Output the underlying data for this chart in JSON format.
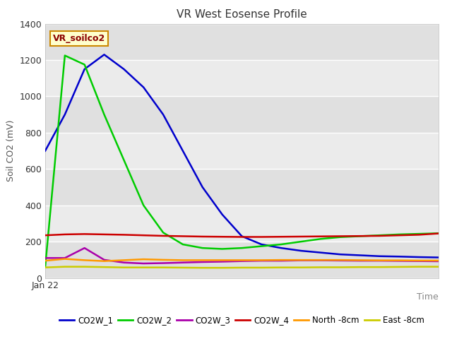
{
  "title": "VR West Eosense Profile",
  "xlabel": "Time",
  "ylabel": "Soil CO2 (mV)",
  "ylim": [
    0,
    1400
  ],
  "annotation_text": "VR_soilco2",
  "background_color": "#ffffff",
  "plot_bg_color": "#e8e8e8",
  "band_color_light": "#ebebeb",
  "band_color_dark": "#d8d8d8",
  "grid_color": "#ffffff",
  "x_tick_label": "Jan 22",
  "series": {
    "CO2W_1": {
      "color": "#0000cc",
      "x": [
        0,
        1,
        2,
        3,
        4,
        5,
        6,
        7,
        8,
        9,
        10,
        11,
        12,
        13,
        14,
        15,
        16,
        17,
        18,
        19,
        20
      ],
      "y": [
        700,
        900,
        1150,
        1230,
        1150,
        1050,
        900,
        700,
        500,
        350,
        230,
        185,
        165,
        150,
        140,
        130,
        125,
        120,
        118,
        115,
        113
      ]
    },
    "CO2W_2": {
      "color": "#00cc00",
      "x": [
        0,
        1,
        2,
        3,
        4,
        5,
        6,
        7,
        8,
        9,
        10,
        11,
        12,
        13,
        14,
        15,
        16,
        17,
        18,
        19,
        20
      ],
      "y": [
        60,
        1225,
        1175,
        900,
        650,
        400,
        250,
        185,
        165,
        160,
        165,
        175,
        185,
        200,
        215,
        225,
        230,
        235,
        240,
        243,
        246
      ]
    },
    "CO2W_3": {
      "color": "#aa00aa",
      "x": [
        0,
        1,
        2,
        3,
        4,
        5,
        6,
        7,
        8,
        9,
        10,
        11,
        12,
        13,
        14,
        15,
        16,
        17,
        18,
        19,
        20
      ],
      "y": [
        110,
        110,
        165,
        100,
        85,
        80,
        82,
        85,
        88,
        90,
        93,
        95,
        95,
        97,
        97,
        96,
        95,
        95,
        94,
        93,
        92
      ]
    },
    "CO2W_4": {
      "color": "#cc0000",
      "x": [
        0,
        1,
        2,
        3,
        4,
        5,
        6,
        7,
        8,
        9,
        10,
        11,
        12,
        13,
        14,
        15,
        16,
        17,
        18,
        19,
        20
      ],
      "y": [
        235,
        240,
        242,
        240,
        238,
        235,
        232,
        230,
        228,
        227,
        226,
        226,
        227,
        228,
        229,
        230,
        231,
        232,
        235,
        238,
        245
      ]
    },
    "North -8cm": {
      "color": "#ff9900",
      "x": [
        0,
        1,
        2,
        3,
        4,
        5,
        6,
        7,
        8,
        9,
        10,
        11,
        12,
        13,
        14,
        15,
        16,
        17,
        18,
        19,
        20
      ],
      "y": [
        95,
        105,
        98,
        93,
        98,
        103,
        100,
        98,
        98,
        98,
        98,
        98,
        99,
        99,
        99,
        99,
        98,
        97,
        97,
        96,
        96
      ]
    },
    "East -8cm": {
      "color": "#cccc00",
      "x": [
        0,
        1,
        2,
        3,
        4,
        5,
        6,
        7,
        8,
        9,
        10,
        11,
        12,
        13,
        14,
        15,
        16,
        17,
        18,
        19,
        20
      ],
      "y": [
        58,
        62,
        62,
        60,
        58,
        58,
        58,
        57,
        56,
        56,
        57,
        57,
        58,
        58,
        59,
        59,
        60,
        60,
        61,
        62,
        62
      ]
    }
  },
  "legend": [
    {
      "label": "CO2W_1",
      "color": "#0000cc"
    },
    {
      "label": "CO2W_2",
      "color": "#00cc00"
    },
    {
      "label": "CO2W_3",
      "color": "#aa00aa"
    },
    {
      "label": "CO2W_4",
      "color": "#cc0000"
    },
    {
      "label": "North -8cm",
      "color": "#ff9900"
    },
    {
      "label": "East -8cm",
      "color": "#cccc00"
    }
  ],
  "yticks": [
    0,
    200,
    400,
    600,
    800,
    1000,
    1200,
    1400
  ],
  "bands": [
    {
      "ymin": 0,
      "ymax": 200,
      "color": "#e0e0e0"
    },
    {
      "ymin": 200,
      "ymax": 400,
      "color": "#ebebeb"
    },
    {
      "ymin": 400,
      "ymax": 600,
      "color": "#e0e0e0"
    },
    {
      "ymin": 600,
      "ymax": 800,
      "color": "#ebebeb"
    },
    {
      "ymin": 800,
      "ymax": 1000,
      "color": "#e0e0e0"
    },
    {
      "ymin": 1000,
      "ymax": 1200,
      "color": "#ebebeb"
    },
    {
      "ymin": 1200,
      "ymax": 1400,
      "color": "#e0e0e0"
    }
  ]
}
